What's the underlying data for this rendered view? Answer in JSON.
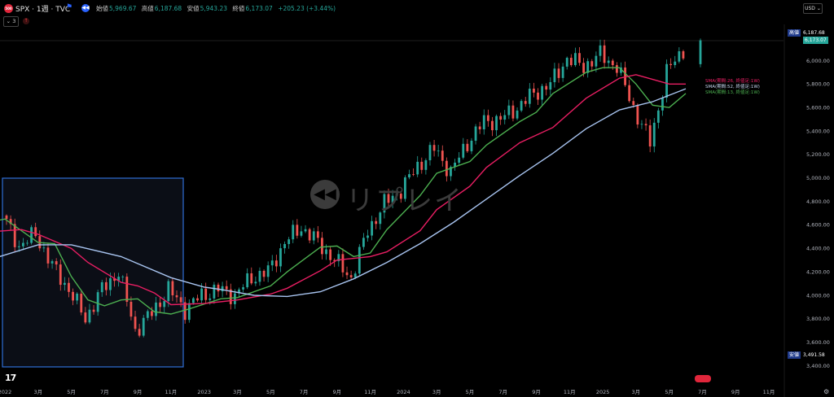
{
  "header": {
    "symbol_badge": "500",
    "title": "SPX · 1週 · TVC",
    "ohlc": [
      {
        "label": "始値",
        "value": "5,969.67"
      },
      {
        "label": "高値",
        "value": "6,187.68"
      },
      {
        "label": "安値",
        "value": "5,943.23"
      },
      {
        "label": "終値",
        "value": "6,173.07"
      },
      {
        "label": "",
        "value": "+205.23 (+3.44%)"
      }
    ],
    "indicator_count": "3",
    "currency": "USD"
  },
  "watermark": {
    "text": "リプレイ"
  },
  "price_axis": {
    "labels": [
      "6,000.00",
      "5,800.00",
      "5,600.00",
      "5,400.00",
      "5,200.00",
      "5,000.00",
      "4,800.00",
      "4,600.00",
      "4,400.00",
      "4,200.00",
      "4,000.00",
      "3,800.00",
      "3,600.00",
      "3,400.00"
    ],
    "high_tag": {
      "name": "高値",
      "value": "6,187.68"
    },
    "last_tag": {
      "value": "6,173.07"
    },
    "low_tag": {
      "name": "安値",
      "value": "3,491.58"
    }
  },
  "time_axis": {
    "labels": [
      "2022",
      "3月",
      "5月",
      "7月",
      "9月",
      "11月",
      "2023",
      "3月",
      "5月",
      "7月",
      "9月",
      "11月",
      "2024",
      "3月",
      "5月",
      "7月",
      "9月",
      "11月",
      "2025",
      "3月",
      "5月",
      "7月",
      "9月",
      "11月"
    ]
  },
  "legend": {
    "sma26": "SMA(期間:26, 終値足:1W)",
    "sma52": "SMA(期間:52, 終値足:1W)",
    "sma13": "SMA(期間:13, 終値足:1W)"
  },
  "colors": {
    "up": "#26a69a",
    "down": "#ef5350",
    "sma13": "#4caf50",
    "sma26": "#e91e63",
    "sma52": "#a8c4f0",
    "highlight_box": "#2f6fd6"
  },
  "chart_data": {
    "type": "line",
    "symbol": "SPX",
    "interval": "1W",
    "y_range": [
      3400,
      6200
    ],
    "x_range": [
      "2021-12",
      "2025-12"
    ],
    "last_bar": {
      "open": 5969.67,
      "high": 6187.68,
      "low": 5943.23,
      "close": 6173.07,
      "change": 205.23,
      "change_pct": 3.44
    },
    "series": [
      {
        "name": "SMA(期間:13, 終値足:1W)",
        "points": [
          [
            "2021-12",
            4620
          ],
          [
            "2022-01",
            4650
          ],
          [
            "2022-03",
            4450
          ],
          [
            "2022-04",
            4440
          ],
          [
            "2022-05",
            4160
          ],
          [
            "2022-06",
            3960
          ],
          [
            "2022-07",
            3910
          ],
          [
            "2022-08",
            3960
          ],
          [
            "2022-09",
            3970
          ],
          [
            "2022-10",
            3860
          ],
          [
            "2022-11",
            3840
          ],
          [
            "2022-12",
            3880
          ],
          [
            "2023-02",
            3970
          ],
          [
            "2023-03",
            3980
          ],
          [
            "2023-05",
            4080
          ],
          [
            "2023-06",
            4200
          ],
          [
            "2023-08",
            4410
          ],
          [
            "2023-09",
            4420
          ],
          [
            "2023-10",
            4330
          ],
          [
            "2023-11",
            4360
          ],
          [
            "2023-12",
            4560
          ],
          [
            "2024-02",
            4850
          ],
          [
            "2024-03",
            5040
          ],
          [
            "2024-05",
            5140
          ],
          [
            "2024-06",
            5280
          ],
          [
            "2024-08",
            5480
          ],
          [
            "2024-09",
            5560
          ],
          [
            "2024-10",
            5720
          ],
          [
            "2024-12",
            5900
          ],
          [
            "2025-01",
            5940
          ],
          [
            "2025-02",
            5940
          ],
          [
            "2025-03",
            5800
          ],
          [
            "2025-04",
            5620
          ],
          [
            "2025-05",
            5600
          ],
          [
            "2025-06",
            5720
          ]
        ]
      },
      {
        "name": "SMA(期間:26, 終値足:1W)",
        "points": [
          [
            "2021-12",
            4540
          ],
          [
            "2022-02",
            4560
          ],
          [
            "2022-03",
            4520
          ],
          [
            "2022-05",
            4400
          ],
          [
            "2022-06",
            4280
          ],
          [
            "2022-08",
            4110
          ],
          [
            "2022-09",
            4080
          ],
          [
            "2022-10",
            4020
          ],
          [
            "2022-11",
            3920
          ],
          [
            "2023-01",
            3930
          ],
          [
            "2023-03",
            3960
          ],
          [
            "2023-05",
            4010
          ],
          [
            "2023-06",
            4060
          ],
          [
            "2023-08",
            4210
          ],
          [
            "2023-09",
            4300
          ],
          [
            "2023-11",
            4330
          ],
          [
            "2023-12",
            4370
          ],
          [
            "2024-02",
            4550
          ],
          [
            "2024-03",
            4730
          ],
          [
            "2024-05",
            4930
          ],
          [
            "2024-06",
            5090
          ],
          [
            "2024-08",
            5300
          ],
          [
            "2024-10",
            5430
          ],
          [
            "2024-12",
            5680
          ],
          [
            "2025-02",
            5850
          ],
          [
            "2025-03",
            5880
          ],
          [
            "2025-04",
            5840
          ],
          [
            "2025-05",
            5800
          ],
          [
            "2025-06",
            5800
          ]
        ]
      },
      {
        "name": "SMA(期間:52, 終値足:1W)",
        "points": [
          [
            "2021-12",
            4300
          ],
          [
            "2022-03",
            4430
          ],
          [
            "2022-05",
            4430
          ],
          [
            "2022-08",
            4330
          ],
          [
            "2022-11",
            4150
          ],
          [
            "2023-01",
            4070
          ],
          [
            "2023-02",
            4050
          ],
          [
            "2023-04",
            4000
          ],
          [
            "2023-06",
            3990
          ],
          [
            "2023-08",
            4030
          ],
          [
            "2023-10",
            4140
          ],
          [
            "2023-12",
            4280
          ],
          [
            "2024-02",
            4440
          ],
          [
            "2024-04",
            4620
          ],
          [
            "2024-06",
            4820
          ],
          [
            "2024-08",
            5020
          ],
          [
            "2024-10",
            5210
          ],
          [
            "2024-12",
            5420
          ],
          [
            "2025-02",
            5580
          ],
          [
            "2025-04",
            5650
          ],
          [
            "2025-06",
            5760
          ]
        ]
      }
    ]
  }
}
